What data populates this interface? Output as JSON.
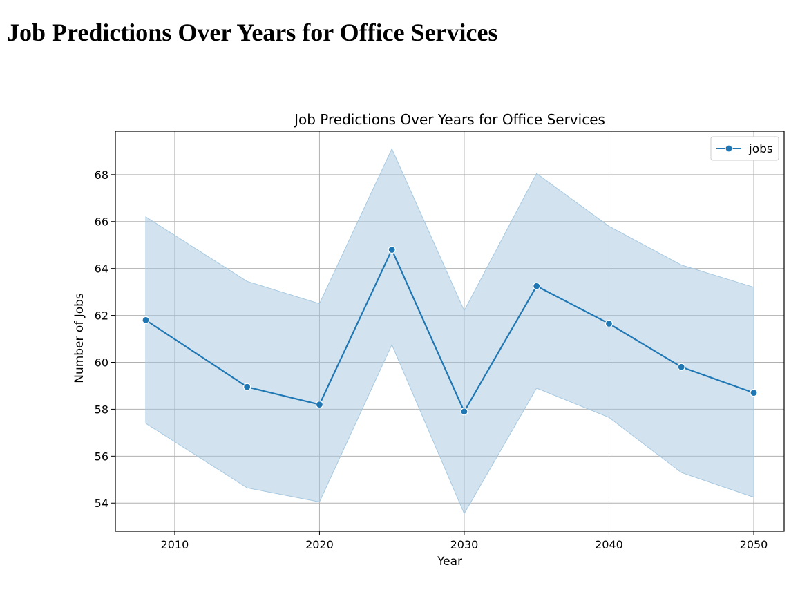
{
  "page": {
    "heading": "Job Predictions Over Years for Office Services"
  },
  "chart_data": {
    "type": "line",
    "title": "Job Predictions Over Years for Office Services",
    "xlabel": "Year",
    "ylabel": "Number of Jobs",
    "x": [
      2008,
      2015,
      2020,
      2025,
      2030,
      2035,
      2040,
      2045,
      2050
    ],
    "series": [
      {
        "name": "jobs",
        "color": "#1f77b4",
        "marker": "circle",
        "values": [
          61.8,
          58.95,
          58.2,
          64.8,
          57.9,
          63.25,
          61.65,
          59.8,
          58.7
        ],
        "ci_lower": [
          57.4,
          54.65,
          54.05,
          60.75,
          53.55,
          58.9,
          57.65,
          55.3,
          54.25
        ],
        "ci_upper": [
          66.2,
          63.45,
          62.5,
          69.1,
          62.2,
          68.05,
          65.8,
          64.15,
          63.2
        ]
      }
    ],
    "xticks": [
      2010,
      2020,
      2030,
      2040,
      2050
    ],
    "xtick_labels": [
      "2010",
      "2020",
      "2030",
      "2040",
      "2050"
    ],
    "yticks": [
      54,
      56,
      58,
      60,
      62,
      64,
      66,
      68
    ],
    "ytick_labels": [
      "54",
      "56",
      "58",
      "60",
      "62",
      "64",
      "66",
      "68"
    ],
    "xlim": [
      2005.9,
      2052.1
    ],
    "ylim": [
      52.8,
      69.85
    ],
    "grid": true,
    "legend_position": "top-right",
    "band_color": "#a6c8e0",
    "grid_color": "#b0b0b0"
  }
}
